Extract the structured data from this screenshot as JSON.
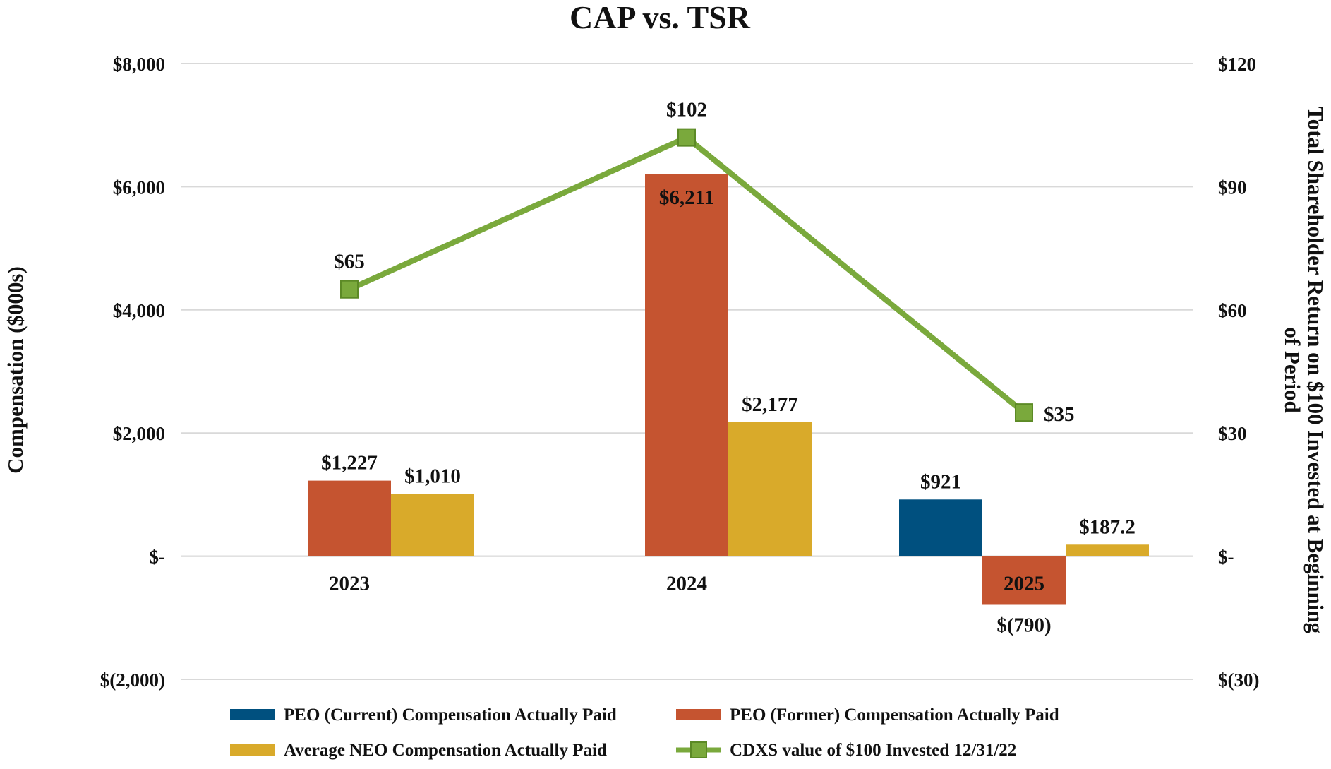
{
  "chart_data": {
    "type": "bar+line",
    "title": "CAP vs. TSR",
    "categories": [
      "2023",
      "2024",
      "2025"
    ],
    "left_axis": {
      "label": "Compensation ($000s)",
      "min": -2000,
      "max": 8000,
      "ticks": [
        {
          "value": 8000,
          "label": "$8,000"
        },
        {
          "value": 6000,
          "label": "$6,000"
        },
        {
          "value": 4000,
          "label": "$4,000"
        },
        {
          "value": 2000,
          "label": "$2,000"
        },
        {
          "value": 0,
          "label": "$-"
        },
        {
          "value": -2000,
          "label": "$(2,000)"
        }
      ]
    },
    "right_axis": {
      "label_lines": [
        "Total Shareholder Return on $100 Invested at Beginning",
        "of Period"
      ],
      "min": -30,
      "max": 120,
      "ticks": [
        {
          "value": 120,
          "label": "$120"
        },
        {
          "value": 90,
          "label": "$90"
        },
        {
          "value": 60,
          "label": "$60"
        },
        {
          "value": 30,
          "label": "$30"
        },
        {
          "value": 0,
          "label": "$-"
        },
        {
          "value": -30,
          "label": "$(30)"
        }
      ]
    },
    "bar_series": [
      {
        "name": "PEO (Current) Compensation Actually Paid",
        "color": "#00507f",
        "values": [
          null,
          null,
          921
        ],
        "labels": [
          "",
          "",
          "$921"
        ]
      },
      {
        "name": "PEO (Former) Compensation Actually Paid",
        "color": "#c55430",
        "values": [
          1227,
          6211,
          -790
        ],
        "labels": [
          "$1,227",
          "$6,211",
          "$(790)"
        ]
      },
      {
        "name": "Average NEO Compensation Actually Paid",
        "color": "#d9aa2a",
        "values": [
          1010,
          2177,
          187.2
        ],
        "labels": [
          "$1,010",
          "$2,177",
          "$187.2"
        ]
      }
    ],
    "line_series": {
      "name": "CDXS value of $100 Invested 12/31/22",
      "color": "#7aa93c",
      "marker_color": "#7aa93c",
      "values": [
        65,
        102,
        35
      ],
      "labels": [
        "$65",
        "$102",
        "$35"
      ]
    },
    "legend": [
      {
        "label": "PEO (Current) Compensation Actually Paid",
        "kind": "bar",
        "color": "#00507f"
      },
      {
        "label": "PEO (Former) Compensation Actually Paid",
        "kind": "bar",
        "color": "#c55430"
      },
      {
        "label": "Average NEO Compensation Actually Paid",
        "kind": "bar",
        "color": "#d9aa2a"
      },
      {
        "label": "CDXS value of $100 Invested 12/31/22",
        "kind": "line",
        "color": "#7aa93c"
      }
    ],
    "grid": true,
    "legend_position": "bottom"
  }
}
